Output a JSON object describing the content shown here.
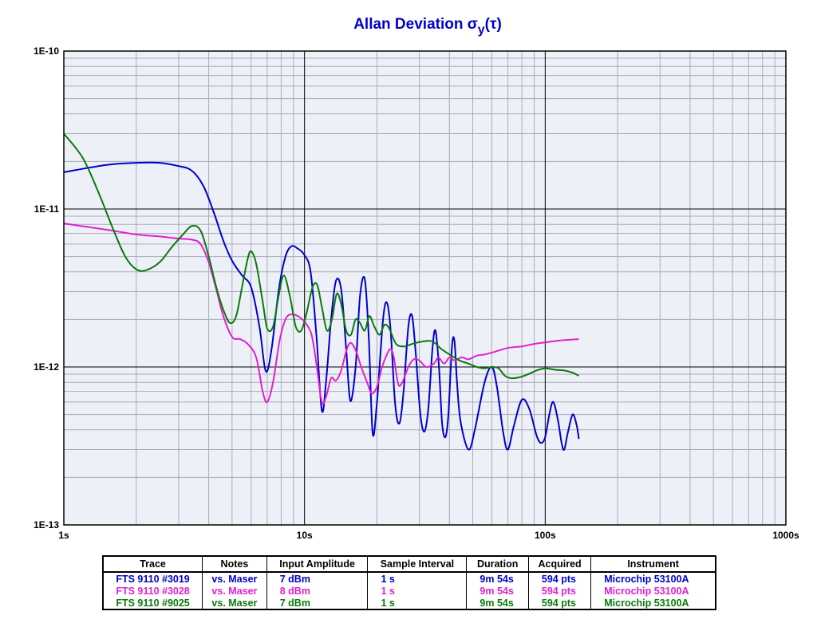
{
  "chart_data": {
    "type": "line",
    "title": "Allan Deviation",
    "title_symbol": "σ",
    "title_subscript": "y",
    "title_arg": "(τ)",
    "xscale": "log",
    "yscale": "log",
    "xlim": [
      1,
      1000
    ],
    "ylim": [
      1e-13,
      1e-10
    ],
    "x_tick_labels": [
      {
        "value": 1,
        "label": "1s"
      },
      {
        "value": 10,
        "label": "10s"
      },
      {
        "value": 100,
        "label": "100s"
      },
      {
        "value": 1000,
        "label": "1000s"
      }
    ],
    "y_tick_labels": [
      {
        "value": 1e-10,
        "label": "1E-10"
      },
      {
        "value": 1e-11,
        "label": "1E-11"
      },
      {
        "value": 1e-12,
        "label": "1E-12"
      },
      {
        "value": 1e-13,
        "label": "1E-13"
      }
    ],
    "grid": true,
    "background": "#eef0f8",
    "series": [
      {
        "name": "FTS 9110 #3019",
        "color": "#0000cc",
        "points": [
          [
            1.0,
            1.71e-11
          ],
          [
            1.5,
            1.9e-11
          ],
          [
            2.0,
            1.96e-11
          ],
          [
            2.5,
            1.96e-11
          ],
          [
            3.0,
            1.87e-11
          ],
          [
            3.4,
            1.75e-11
          ],
          [
            3.8,
            1.4e-11
          ],
          [
            4.2,
            9.5e-12
          ],
          [
            4.6,
            6.3e-12
          ],
          [
            5.0,
            4.7e-12
          ],
          [
            5.5,
            3.8e-12
          ],
          [
            6.0,
            3.2e-12
          ],
          [
            6.5,
            1.8e-12
          ],
          [
            6.9,
            9.4e-13
          ],
          [
            7.3,
            1.3e-12
          ],
          [
            7.8,
            3e-12
          ],
          [
            8.3,
            4.9e-12
          ],
          [
            8.8,
            5.8e-12
          ],
          [
            9.4,
            5.6e-12
          ],
          [
            10.0,
            5.1e-12
          ],
          [
            10.6,
            4e-12
          ],
          [
            11.2,
            1.6e-12
          ],
          [
            11.8,
            5.3e-13
          ],
          [
            12.3,
            8.2e-13
          ],
          [
            12.9,
            2e-12
          ],
          [
            13.5,
            3.5e-12
          ],
          [
            14.2,
            3.1e-12
          ],
          [
            14.9,
            1.3e-12
          ],
          [
            15.5,
            6.1e-13
          ],
          [
            16.3,
            1e-12
          ],
          [
            17.0,
            2.8e-12
          ],
          [
            17.8,
            3.6e-12
          ],
          [
            18.5,
            1.5e-12
          ],
          [
            19.2,
            3.8e-13
          ],
          [
            20.0,
            6e-13
          ],
          [
            21.2,
            2e-12
          ],
          [
            22.0,
            2.55e-12
          ],
          [
            22.8,
            1.7e-12
          ],
          [
            23.8,
            5.8e-13
          ],
          [
            24.8,
            4.4e-13
          ],
          [
            25.8,
            7e-13
          ],
          [
            27.0,
            1.8e-12
          ],
          [
            28.0,
            2.1e-12
          ],
          [
            29.0,
            1.2e-12
          ],
          [
            30.3,
            5e-13
          ],
          [
            31.5,
            3.9e-13
          ],
          [
            32.7,
            5.5e-13
          ],
          [
            34.0,
            1.3e-12
          ],
          [
            35.0,
            1.7e-12
          ],
          [
            36.2,
            1e-12
          ],
          [
            37.3,
            4.4e-13
          ],
          [
            38.5,
            3.6e-13
          ],
          [
            39.6,
            5e-13
          ],
          [
            41.0,
            1.35e-12
          ],
          [
            42.0,
            1.45e-12
          ],
          [
            43.0,
            8e-13
          ],
          [
            44.5,
            4.5e-13
          ],
          [
            48.0,
            3e-13
          ],
          [
            51.0,
            4e-13
          ],
          [
            56.0,
            8e-13
          ],
          [
            60.0,
            1e-12
          ],
          [
            63.0,
            7.5e-13
          ],
          [
            67.0,
            3.8e-13
          ],
          [
            70.0,
            3e-13
          ],
          [
            74.0,
            4.2e-13
          ],
          [
            80.0,
            6.2e-13
          ],
          [
            86.0,
            5.4e-13
          ],
          [
            92.0,
            3.7e-13
          ],
          [
            96.0,
            3.3e-13
          ],
          [
            100.0,
            3.6e-13
          ],
          [
            104.0,
            5e-13
          ],
          [
            108.0,
            6e-13
          ],
          [
            113.0,
            4.6e-13
          ],
          [
            117.0,
            3.3e-13
          ],
          [
            120.0,
            3e-13
          ],
          [
            124.0,
            3.8e-13
          ],
          [
            130.0,
            5e-13
          ],
          [
            135.0,
            4.3e-13
          ],
          [
            138.0,
            3.5e-13
          ]
        ]
      },
      {
        "name": "FTS 9110 #3028",
        "color": "#e020d0",
        "points": [
          [
            1.0,
            8.1e-12
          ],
          [
            1.5,
            7.4e-12
          ],
          [
            2.0,
            6.9e-12
          ],
          [
            2.5,
            6.7e-12
          ],
          [
            3.0,
            6.5e-12
          ],
          [
            3.4,
            6.4e-12
          ],
          [
            3.7,
            6e-12
          ],
          [
            4.0,
            4.6e-12
          ],
          [
            4.3,
            3.1e-12
          ],
          [
            4.6,
            2.1e-12
          ],
          [
            5.0,
            1.55e-12
          ],
          [
            5.4,
            1.5e-12
          ],
          [
            5.8,
            1.4e-12
          ],
          [
            6.3,
            1.15e-12
          ],
          [
            6.7,
            7e-13
          ],
          [
            7.0,
            6e-13
          ],
          [
            7.4,
            8e-13
          ],
          [
            7.9,
            1.5e-12
          ],
          [
            8.4,
            2.05e-12
          ],
          [
            9.0,
            2.15e-12
          ],
          [
            9.6,
            2.05e-12
          ],
          [
            10.1,
            1.9e-12
          ],
          [
            10.7,
            1.6e-12
          ],
          [
            11.2,
            1.05e-12
          ],
          [
            11.8,
            6e-13
          ],
          [
            12.3,
            6.5e-13
          ],
          [
            12.9,
            8.5e-13
          ],
          [
            13.5,
            8.2e-13
          ],
          [
            14.2,
            9.5e-13
          ],
          [
            15.0,
            1.3e-12
          ],
          [
            15.6,
            1.42e-12
          ],
          [
            16.4,
            1.25e-12
          ],
          [
            17.2,
            1e-12
          ],
          [
            18.2,
            8e-13
          ],
          [
            19.0,
            6.8e-13
          ],
          [
            20.0,
            7.5e-13
          ],
          [
            21.0,
            1e-12
          ],
          [
            22.0,
            1.2e-12
          ],
          [
            22.8,
            1.3e-12
          ],
          [
            23.5,
            1.15e-12
          ],
          [
            24.5,
            7.8e-13
          ],
          [
            25.5,
            8e-13
          ],
          [
            27.0,
            1e-12
          ],
          [
            28.5,
            1.12e-12
          ],
          [
            30.0,
            1.1e-12
          ],
          [
            32.0,
            1e-12
          ],
          [
            34.5,
            1.05e-12
          ],
          [
            36.0,
            1.15e-12
          ],
          [
            38.0,
            1.05e-12
          ],
          [
            40.0,
            1.15e-12
          ],
          [
            42.0,
            1.1e-12
          ],
          [
            45.0,
            1.15e-12
          ],
          [
            48.0,
            1.12e-12
          ],
          [
            52.0,
            1.18e-12
          ],
          [
            56.0,
            1.2e-12
          ],
          [
            62.0,
            1.25e-12
          ],
          [
            70.0,
            1.32e-12
          ],
          [
            80.0,
            1.35e-12
          ],
          [
            90.0,
            1.4e-12
          ],
          [
            100.0,
            1.43e-12
          ],
          [
            115.0,
            1.47e-12
          ],
          [
            138.0,
            1.5e-12
          ]
        ]
      },
      {
        "name": "FTS 9110 #9025",
        "color": "#0a7a0a",
        "points": [
          [
            1.0,
            3e-11
          ],
          [
            1.2,
            2.1e-11
          ],
          [
            1.4,
            1.25e-11
          ],
          [
            1.6,
            7.5e-12
          ],
          [
            1.8,
            5e-12
          ],
          [
            2.0,
            4.15e-12
          ],
          [
            2.2,
            4.1e-12
          ],
          [
            2.5,
            4.6e-12
          ],
          [
            2.8,
            5.7e-12
          ],
          [
            3.1,
            6.8e-12
          ],
          [
            3.4,
            7.8e-12
          ],
          [
            3.7,
            7.3e-12
          ],
          [
            4.0,
            5e-12
          ],
          [
            4.3,
            3.2e-12
          ],
          [
            4.6,
            2.3e-12
          ],
          [
            4.9,
            1.9e-12
          ],
          [
            5.2,
            2.1e-12
          ],
          [
            5.5,
            3.2e-12
          ],
          [
            5.8,
            4.8e-12
          ],
          [
            6.0,
            5.4e-12
          ],
          [
            6.3,
            4.5e-12
          ],
          [
            6.7,
            2.6e-12
          ],
          [
            7.0,
            1.75e-12
          ],
          [
            7.4,
            1.8e-12
          ],
          [
            7.8,
            2.8e-12
          ],
          [
            8.2,
            3.8e-12
          ],
          [
            8.7,
            2.8e-12
          ],
          [
            9.2,
            1.8e-12
          ],
          [
            9.7,
            1.7e-12
          ],
          [
            10.2,
            2.2e-12
          ],
          [
            10.8,
            3.2e-12
          ],
          [
            11.3,
            3.3e-12
          ],
          [
            11.8,
            2.4e-12
          ],
          [
            12.4,
            1.7e-12
          ],
          [
            13.0,
            2e-12
          ],
          [
            13.6,
            2.9e-12
          ],
          [
            14.2,
            2.5e-12
          ],
          [
            14.9,
            1.7e-12
          ],
          [
            15.6,
            1.6e-12
          ],
          [
            16.3,
            2e-12
          ],
          [
            17.0,
            1.9e-12
          ],
          [
            17.8,
            1.7e-12
          ],
          [
            18.6,
            2.1e-12
          ],
          [
            19.5,
            1.8e-12
          ],
          [
            20.5,
            1.6e-12
          ],
          [
            21.5,
            1.85e-12
          ],
          [
            22.5,
            1.75e-12
          ],
          [
            24.0,
            1.4e-12
          ],
          [
            26.0,
            1.35e-12
          ],
          [
            28.0,
            1.4e-12
          ],
          [
            31.0,
            1.45e-12
          ],
          [
            34.0,
            1.45e-12
          ],
          [
            37.0,
            1.3e-12
          ],
          [
            40.0,
            1.2e-12
          ],
          [
            44.0,
            1.1e-12
          ],
          [
            48.0,
            1.05e-12
          ],
          [
            52.0,
            1e-12
          ],
          [
            56.0,
            9.8e-13
          ],
          [
            60.0,
            1e-12
          ],
          [
            64.0,
            9.8e-13
          ],
          [
            68.0,
            8.8e-13
          ],
          [
            72.0,
            8.5e-13
          ],
          [
            78.0,
            8.6e-13
          ],
          [
            85.0,
            9e-13
          ],
          [
            92.0,
            9.5e-13
          ],
          [
            100.0,
            9.8e-13
          ],
          [
            110.0,
            9.6e-13
          ],
          [
            120.0,
            9.5e-13
          ],
          [
            130.0,
            9.2e-13
          ],
          [
            138.0,
            8.8e-13
          ]
        ]
      }
    ],
    "table": {
      "headers": [
        "Trace",
        "Notes",
        "Input Amplitude",
        "Sample Interval",
        "Duration",
        "Acquired",
        "Instrument"
      ],
      "rows": [
        {
          "color": "#0000cc",
          "cells": [
            "FTS 9110 #3019",
            "vs. Maser",
            "7 dBm",
            "1 s",
            "9m 54s",
            "594 pts",
            "Microchip 53100A"
          ]
        },
        {
          "color": "#e020d0",
          "cells": [
            "FTS 9110 #3028",
            "vs. Maser",
            "8 dBm",
            "1 s",
            "9m 54s",
            "594 pts",
            "Microchip 53100A"
          ]
        },
        {
          "color": "#0a7a0a",
          "cells": [
            "FTS 9110 #9025",
            "vs. Maser",
            "7 dBm",
            "1 s",
            "9m 54s",
            "594 pts",
            "Microchip 53100A"
          ]
        }
      ]
    }
  }
}
